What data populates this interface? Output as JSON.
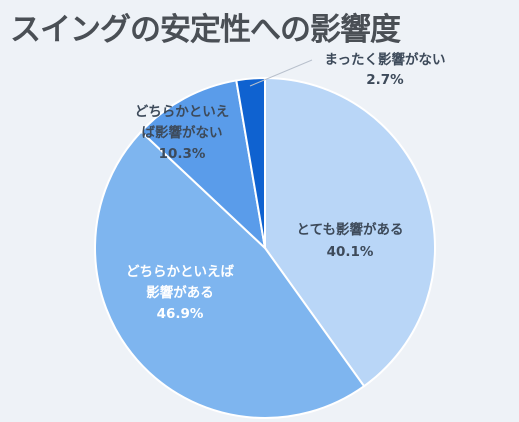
{
  "chart_data": {
    "type": "pie",
    "title": "スイングの安定性への影響度",
    "slices": [
      {
        "label_lines": [
          "とても影響がある"
        ],
        "value": 40.1,
        "display": "40.1%",
        "color": "#b9d6f7",
        "text_color": "#3d4a5a"
      },
      {
        "label_lines": [
          "どちらかといえば",
          "影響がある"
        ],
        "value": 46.9,
        "display": "46.9%",
        "color": "#7eb5ef",
        "text_color": "#ffffff"
      },
      {
        "label_lines": [
          "どちらかといえ",
          "ば影響がない"
        ],
        "value": 10.3,
        "display": "10.3%",
        "color": "#5a9cea",
        "text_color": "#3d4a5a"
      },
      {
        "label_lines": [
          "まったく影響がない"
        ],
        "value": 2.7,
        "display": "2.7%",
        "color": "#0f62d0",
        "text_color": "#3d4a5a"
      }
    ],
    "start": "12 o'clock",
    "direction": "clockwise",
    "legend": "none"
  }
}
